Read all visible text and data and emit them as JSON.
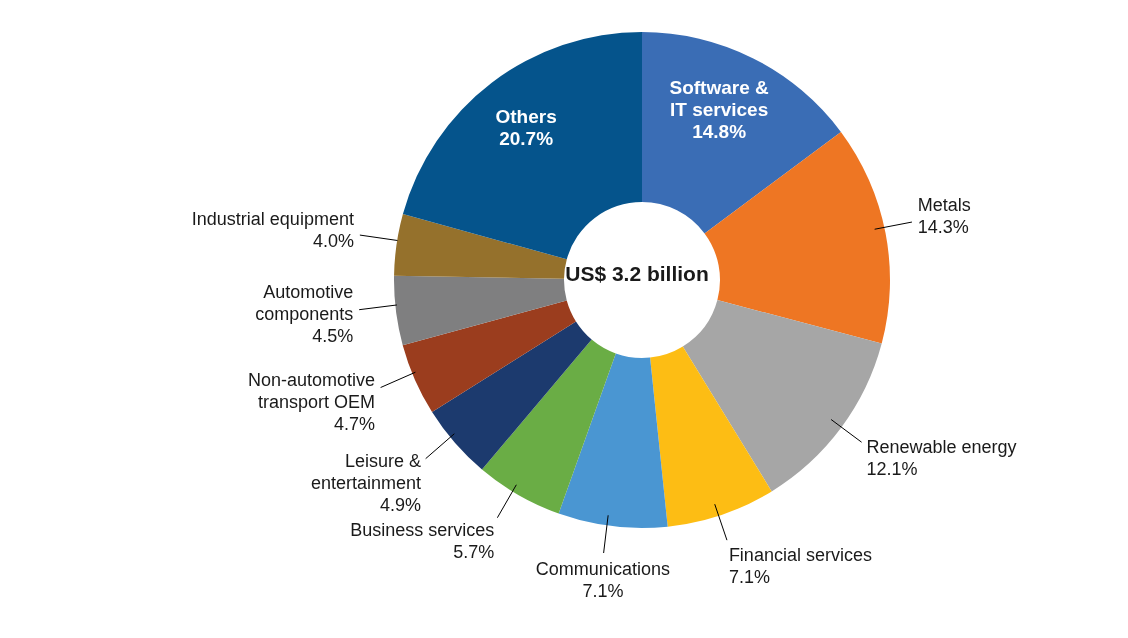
{
  "chart_data": {
    "type": "donut",
    "categories": [
      "Software & IT services",
      "Metals",
      "Renewable energy",
      "Financial services",
      "Communications",
      "Business services",
      "Leisure & entertainment",
      "Non-automotive transport OEM",
      "Automotive components",
      "Industrial equipment",
      "Others"
    ],
    "values": [
      14.8,
      14.3,
      12.1,
      7.1,
      7.1,
      5.7,
      4.9,
      4.7,
      4.5,
      4.0,
      20.7
    ],
    "value_labels": [
      "14.8%",
      "14.3%",
      "12.1%",
      "7.1%",
      "7.1%",
      "5.7%",
      "4.9%",
      "4.7%",
      "4.5%",
      "4.0%",
      "20.7%"
    ],
    "colors": [
      "#3a6db5",
      "#ee7623",
      "#a6a6a6",
      "#fdbd14",
      "#4a96d2",
      "#6aad45",
      "#1c3a6e",
      "#9b3d1e",
      "#7f7f80",
      "#95712c",
      "#05548c"
    ],
    "annotations": [
      "US$ 3.2 billion"
    ]
  }
}
